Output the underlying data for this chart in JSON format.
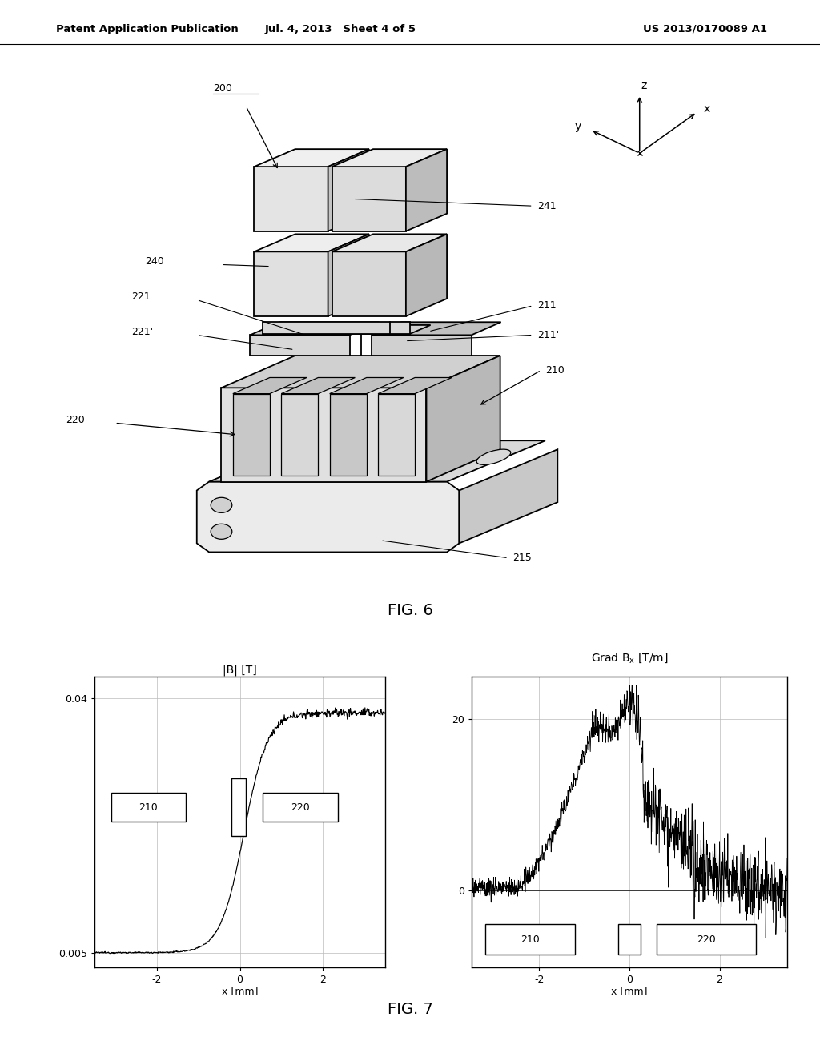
{
  "page_bg": "#ffffff",
  "header_left": "Patent Application Publication",
  "header_mid": "Jul. 4, 2013   Sheet 4 of 5",
  "header_right": "US 2013/0170089 A1",
  "fig6_label": "FIG. 6",
  "fig7_label": "FIG. 7",
  "plot1_title": "|B| [T]",
  "plot1_xlabel": "x [mm]",
  "plot2_xlabel": "x [mm]",
  "line_color": "#000000",
  "grid_color": "#bbbbbb"
}
